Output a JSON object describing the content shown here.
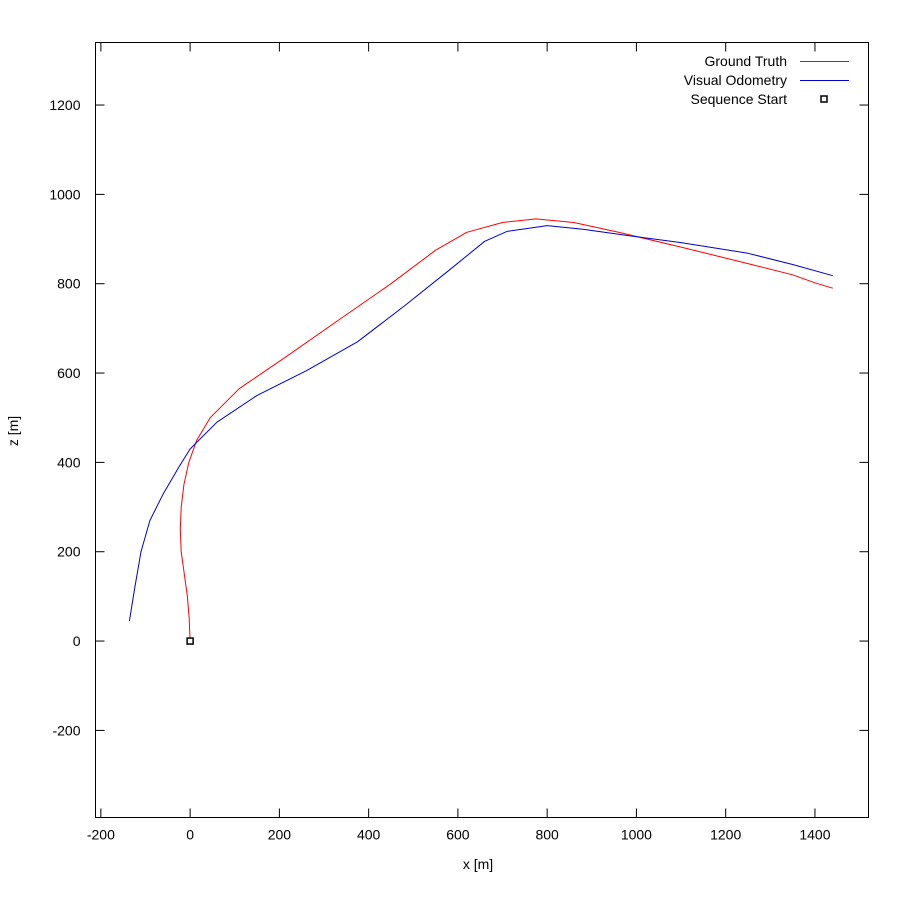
{
  "chart_data": {
    "type": "line",
    "title": "",
    "xlabel": "x [m]",
    "ylabel": "z [m]",
    "xlim": [
      -212,
      1520
    ],
    "ylim": [
      -395,
      1340
    ],
    "x_ticks": [
      -200,
      0,
      200,
      400,
      600,
      800,
      1000,
      1200,
      1400
    ],
    "y_ticks": [
      -200,
      0,
      200,
      400,
      600,
      800,
      1000,
      1200
    ],
    "grid": false,
    "legend_position": "top-right",
    "series": [
      {
        "name": "Ground Truth",
        "color": "#ff0000",
        "points": [
          [
            0,
            0
          ],
          [
            -2,
            50
          ],
          [
            -6,
            100
          ],
          [
            -13,
            150
          ],
          [
            -20,
            200
          ],
          [
            -22,
            250
          ],
          [
            -20,
            300
          ],
          [
            -14,
            350
          ],
          [
            -3,
            400
          ],
          [
            15,
            450
          ],
          [
            45,
            500
          ],
          [
            110,
            565
          ],
          [
            220,
            640
          ],
          [
            335,
            720
          ],
          [
            450,
            800
          ],
          [
            550,
            875
          ],
          [
            620,
            915
          ],
          [
            700,
            937
          ],
          [
            775,
            945
          ],
          [
            860,
            937
          ],
          [
            960,
            915
          ],
          [
            1100,
            882
          ],
          [
            1250,
            845
          ],
          [
            1350,
            820
          ],
          [
            1400,
            802
          ],
          [
            1440,
            790
          ]
        ]
      },
      {
        "name": "Visual Odometry",
        "color": "#0000cc",
        "points": [
          [
            -136,
            45
          ],
          [
            -124,
            120
          ],
          [
            -110,
            200
          ],
          [
            -90,
            270
          ],
          [
            -60,
            330
          ],
          [
            -25,
            390
          ],
          [
            0,
            430
          ],
          [
            60,
            490
          ],
          [
            150,
            550
          ],
          [
            260,
            605
          ],
          [
            375,
            670
          ],
          [
            480,
            750
          ],
          [
            580,
            830
          ],
          [
            660,
            895
          ],
          [
            710,
            917
          ],
          [
            800,
            930
          ],
          [
            880,
            922
          ],
          [
            980,
            908
          ],
          [
            1100,
            892
          ],
          [
            1250,
            868
          ],
          [
            1350,
            843
          ],
          [
            1440,
            818
          ]
        ]
      }
    ],
    "markers": [
      {
        "name": "Sequence Start",
        "x": 0,
        "y": 0,
        "symbol": "open-square"
      }
    ]
  }
}
